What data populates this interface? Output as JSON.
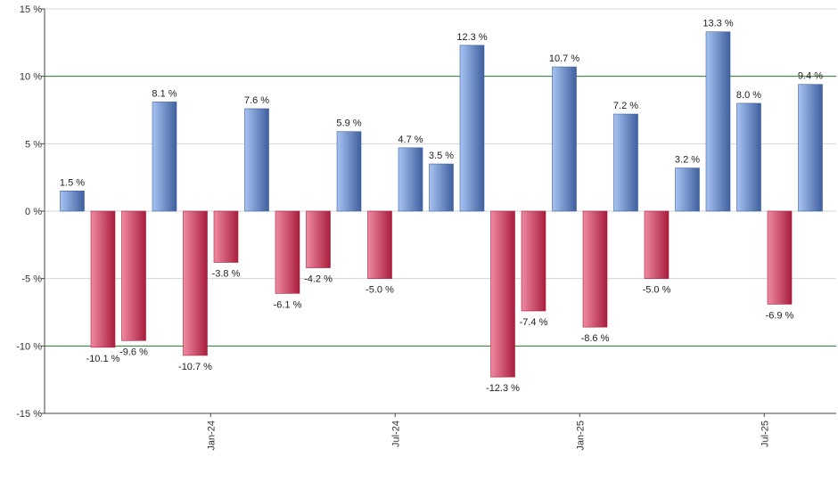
{
  "chart_data": {
    "type": "bar",
    "title": "",
    "xlabel": "",
    "ylabel": "",
    "ylim": [
      -15,
      15
    ],
    "y_ticks": [
      15,
      10,
      5,
      0,
      -5,
      -10,
      -15
    ],
    "y_tick_labels": [
      "15 %",
      "10 %",
      "5 %",
      "0 %",
      "-5 %",
      "-10 %",
      "-15 %"
    ],
    "x_tick_labels": [
      "Jan-24",
      "Jul-24",
      "Jan-25",
      "Jul-25"
    ],
    "x_tick_after_index": [
      4,
      10,
      16,
      22
    ],
    "reference_lines": [
      10,
      -10
    ],
    "grid": true,
    "colors": {
      "positive_light": "#a7c4f2",
      "positive_dark": "#3f5f9e",
      "negative_light": "#f08aa2",
      "negative_dark": "#a81e3d",
      "reference_line": "#2e7d32",
      "grid_line": "#d6d6d6",
      "axis": "#444444"
    },
    "values": [
      1.5,
      -10.1,
      -9.6,
      8.1,
      -10.7,
      -3.8,
      7.6,
      -6.1,
      -4.2,
      5.9,
      -5.0,
      4.7,
      3.5,
      12.3,
      -12.3,
      -7.4,
      10.7,
      -8.6,
      7.2,
      -5.0,
      3.2,
      13.3,
      8.0,
      -6.9,
      9.4
    ],
    "labels": [
      "1.5 %",
      "-10.1 %",
      "-9.6 %",
      "8.1 %",
      "-10.7 %",
      "-3.8 %",
      "7.6 %",
      "-6.1 %",
      "-4.2 %",
      "5.9 %",
      "-5.0 %",
      "4.7 %",
      "3.5 %",
      "12.3 %",
      "-12.3 %",
      "-7.4 %",
      "10.7 %",
      "-8.6 %",
      "7.2 %",
      "-5.0 %",
      "3.2 %",
      "13.3 %",
      "8.0 %",
      "-6.9 %",
      "9.4 %"
    ]
  }
}
